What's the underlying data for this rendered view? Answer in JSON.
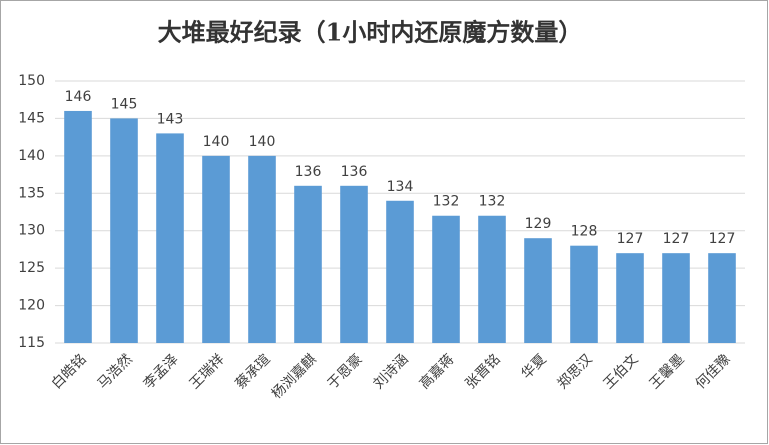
{
  "chart_data": {
    "type": "bar",
    "title": "大堆最好纪录（1小时内还原魔方数量）",
    "categories": [
      "白皓铭",
      "马浩然",
      "李孟泽",
      "王瑞祥",
      "蔡承瑄",
      "杨浏嘉麒",
      "于恩豪",
      "刘诗涵",
      "高嘉蒋",
      "张晋铭",
      "华夏",
      "郑思汉",
      "王伯文",
      "王馨墨",
      "何佳豫"
    ],
    "values": [
      146,
      145,
      143,
      140,
      140,
      136,
      136,
      134,
      132,
      132,
      129,
      128,
      127,
      127,
      127
    ],
    "color": "#5b9bd5",
    "ylim": [
      115,
      150
    ],
    "yticks": [
      115,
      120,
      125,
      130,
      135,
      140,
      145,
      150
    ],
    "grid": true
  }
}
